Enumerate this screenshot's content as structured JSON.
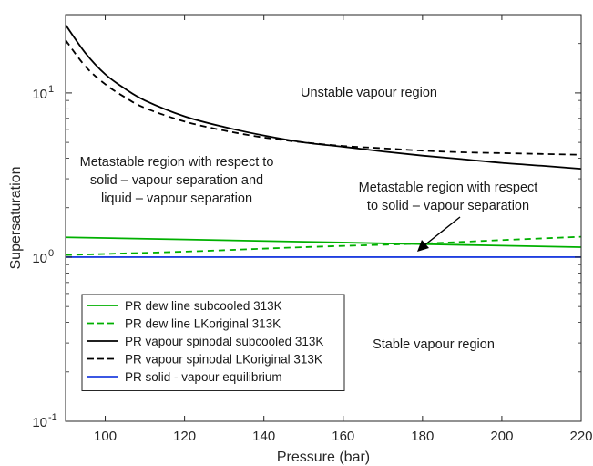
{
  "chart_data": {
    "type": "line",
    "xlabel": "Pressure (bar)",
    "ylabel": "Supersaturation",
    "xlim": [
      90,
      220
    ],
    "ylim": [
      0.1,
      30
    ],
    "yscale": "log",
    "grid": false,
    "x_ticks": [
      100,
      120,
      140,
      160,
      180,
      200,
      220
    ],
    "x_tick_labels": [
      "100",
      "120",
      "140",
      "160",
      "180",
      "200",
      "220"
    ],
    "y_ticks": [
      0.1,
      1,
      10
    ],
    "y_tick_labels": [
      {
        "base": "10",
        "exp": "-1"
      },
      {
        "base": "10",
        "exp": "0"
      },
      {
        "base": "10",
        "exp": "1"
      }
    ],
    "legend_position": "bottom-left",
    "series": [
      {
        "name": "PR dew line subcooled 313K",
        "color": "#00b000",
        "dash": "solid",
        "x": [
          90,
          120,
          150,
          180,
          220
        ],
        "y": [
          1.32,
          1.28,
          1.24,
          1.2,
          1.15
        ]
      },
      {
        "name": "PR dew line LKoriginal 313K",
        "color": "#00b000",
        "dash": "dashed",
        "x": [
          90,
          120,
          150,
          180,
          200,
          220
        ],
        "y": [
          1.03,
          1.08,
          1.15,
          1.21,
          1.27,
          1.33
        ]
      },
      {
        "name": "PR vapour spinodal subcooled 313K",
        "color": "#000000",
        "dash": "solid",
        "x": [
          90,
          95,
          100,
          105,
          110,
          120,
          130,
          140,
          150,
          160,
          170,
          180,
          190,
          200,
          210,
          220
        ],
        "y": [
          26,
          17.5,
          13,
          10.6,
          9.0,
          7.2,
          6.2,
          5.5,
          5.0,
          4.7,
          4.4,
          4.15,
          3.95,
          3.75,
          3.6,
          3.45
        ]
      },
      {
        "name": "PR vapour spinodal LKoriginal 313K",
        "color": "#000000",
        "dash": "dashed",
        "x": [
          90,
          95,
          100,
          105,
          110,
          120,
          130,
          140,
          150,
          160,
          170,
          180,
          190,
          200,
          210,
          220
        ],
        "y": [
          21,
          14.5,
          11.3,
          9.4,
          8.1,
          6.7,
          5.9,
          5.35,
          5.0,
          4.75,
          4.6,
          4.45,
          4.35,
          4.3,
          4.25,
          4.2
        ]
      },
      {
        "name": "PR solid - vapour equilibrium",
        "color": "#1f3fdf",
        "dash": "solid",
        "x": [
          90,
          220
        ],
        "y": [
          1.0,
          1.0
        ]
      }
    ],
    "annotations": [
      {
        "id": "unstable",
        "lines": [
          "Unstable vapour region"
        ]
      },
      {
        "id": "metastable-liquid",
        "lines": [
          "Metastable region with respect to",
          "solid – vapour separation and",
          "liquid – vapour separation"
        ]
      },
      {
        "id": "metastable-solid",
        "lines": [
          "Metastable region with respect",
          "to solid – vapour separation"
        ]
      },
      {
        "id": "stable",
        "lines": [
          "Stable vapour region"
        ]
      }
    ]
  }
}
